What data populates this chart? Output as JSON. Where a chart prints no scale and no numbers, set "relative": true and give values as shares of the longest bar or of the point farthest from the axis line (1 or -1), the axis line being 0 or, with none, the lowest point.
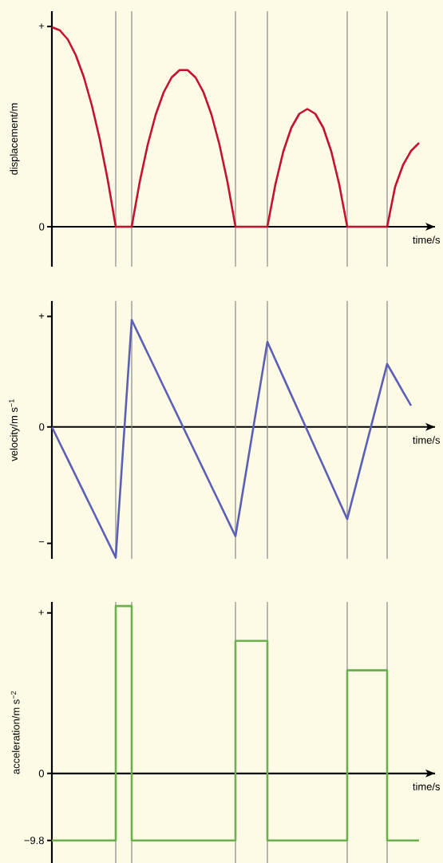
{
  "chart_data": [
    {
      "type": "line",
      "relative": true,
      "xlabel": "time/s",
      "ylabel": "displacement/m",
      "categories": [
        null,
        null,
        null,
        null,
        null,
        null,
        null,
        null,
        null,
        null,
        null,
        null,
        null,
        null,
        null,
        null,
        null,
        null,
        null,
        null,
        null,
        null,
        null,
        null,
        null,
        null,
        null,
        null,
        null,
        null,
        null,
        null,
        null,
        null,
        null,
        null,
        null,
        null,
        null,
        null,
        null,
        null,
        null,
        null,
        null,
        null,
        null
      ],
      "series": [
        {
          "color": "#c41230",
          "values": [
            1,
            0.984,
            0.938,
            0.859,
            0.75,
            0.609,
            0.438,
            0.234,
            0,
            0,
            0,
            0.224,
            0.41,
            0.561,
            0.673,
            0.748,
            0.785,
            0.785,
            0.748,
            0.673,
            0.561,
            0.41,
            0.224,
            0,
            0,
            0,
            0,
            0,
            0.212,
            0.378,
            0.496,
            0.566,
            0.59,
            0.566,
            0.496,
            0.378,
            0.212,
            0,
            0,
            0,
            0,
            0,
            0,
            0.2,
            0.31,
            0.38,
            0.42
          ]
        }
      ],
      "grid": "x",
      "annotations": [
        "+",
        "0"
      ]
    },
    {
      "type": "line",
      "relative": true,
      "xlabel": "time/s",
      "ylabel": "velocity/m s$^{−1}$",
      "categories": [
        null,
        null,
        null,
        null,
        null,
        null,
        null,
        null,
        null,
        null,
        null,
        null,
        null,
        null,
        null,
        null,
        null,
        null,
        null,
        null,
        null,
        null,
        null,
        null,
        null,
        null,
        null,
        null,
        null,
        null,
        null,
        null,
        null,
        null,
        null,
        null,
        null,
        null,
        null,
        null,
        null,
        null,
        null,
        null,
        null,
        null,
        null
      ],
      "series": [
        {
          "color": "#5b5fb5",
          "values": [
            0,
            -0.125,
            -0.25,
            -0.375,
            -0.5,
            -0.625,
            -0.75,
            -0.875,
            -1,
            -0.09,
            0.819,
            0.692,
            0.564,
            0.437,
            0.309,
            0.182,
            0.055,
            -0.073,
            -0.2,
            -0.328,
            -0.455,
            -0.582,
            -0.71,
            -0.837,
            -0.465,
            -0.093,
            0.279,
            0.651,
            0.515,
            0.38,
            0.244,
            0.109,
            -0.027,
            -0.163,
            -0.298,
            -0.434,
            -0.57,
            -0.705,
            -0.468,
            -0.23,
            0.007,
            0.245,
            0.482,
            0.376,
            0.269,
            0.163,
            null
          ]
        }
      ],
      "grid": "x",
      "annotations": [
        "+",
        "0",
        "−"
      ]
    },
    {
      "type": "step",
      "xlabel": "time/s",
      "ylabel": "acceleration/m s$^{−2}$",
      "categories": [
        null,
        null,
        null,
        null,
        null,
        null,
        null,
        null,
        null,
        null,
        null,
        null,
        null,
        null,
        null,
        null,
        null,
        null,
        null,
        null,
        null,
        null,
        null,
        null,
        null,
        null,
        null,
        null,
        null,
        null,
        null,
        null,
        null,
        null,
        null,
        null,
        null,
        null,
        null,
        null,
        null,
        null,
        null,
        null,
        null,
        null,
        null
      ],
      "series": [
        {
          "color": "#6ab04c",
          "values": [
            -9.8,
            -9.8,
            -9.8,
            -9.8,
            -9.8,
            -9.8,
            -9.8,
            -9.8,
            24.5,
            24.5,
            -9.8,
            -9.8,
            -9.8,
            -9.8,
            -9.8,
            -9.8,
            -9.8,
            -9.8,
            -9.8,
            -9.8,
            -9.8,
            -9.8,
            -9.8,
            19.4,
            19.4,
            19.4,
            19.4,
            -9.8,
            -9.8,
            -9.8,
            -9.8,
            -9.8,
            -9.8,
            -9.8,
            -9.8,
            -9.8,
            -9.8,
            15.1,
            15.1,
            15.1,
            15.1,
            15.1,
            -9.8,
            -9.8,
            -9.8,
            -9.8,
            -9.8
          ]
        }
      ],
      "grid": "x",
      "ylim": [
        -13.1,
        25.1
      ],
      "yticks": [
        {
          "value": -9.8,
          "label": "−9.8"
        },
        0,
        {
          "value": 23.5,
          "label": "+"
        }
      ]
    }
  ]
}
